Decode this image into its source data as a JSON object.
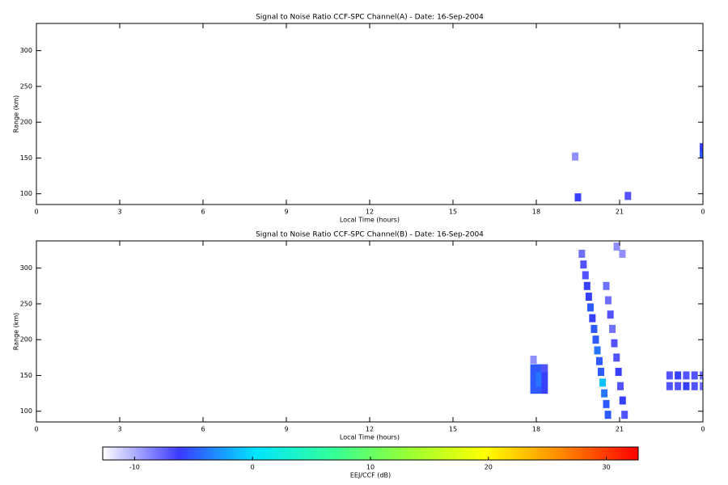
{
  "chart_data": [
    {
      "type": "heatmap",
      "title": "Signal to Noise Ratio CCF-SPC Channel(A) - Date: 16-Sep-2004",
      "xlabel": "Local Time (hours)",
      "ylabel": "Range (km)",
      "xlim": [
        0,
        24
      ],
      "ylim": [
        85,
        338
      ],
      "xticks": [
        0,
        3,
        6,
        9,
        12,
        15,
        18,
        21,
        {
          "value": 24,
          "label": "0"
        }
      ],
      "yticks": [
        100,
        150,
        200,
        250,
        300
      ],
      "x": [
        19.5,
        19.4,
        21.3,
        24.0,
        24.0
      ],
      "y": [
        95,
        152,
        97,
        155,
        165
      ],
      "values": [
        -6,
        -9,
        -7,
        -5,
        -6
      ]
    },
    {
      "type": "heatmap",
      "title": "Signal to Noise Ratio CCF-SPC Channel(B) - Date: 16-Sep-2004",
      "xlabel": "Local Time (hours)",
      "ylabel": "Range (km)",
      "xlim": [
        0,
        24
      ],
      "ylim": [
        85,
        338
      ],
      "xticks": [
        0,
        3,
        6,
        9,
        12,
        15,
        18,
        21,
        {
          "value": 24,
          "label": "0"
        }
      ],
      "yticks": [
        100,
        150,
        200,
        250,
        300
      ],
      "x": [
        17.9,
        18.1,
        18.3,
        17.9,
        18.1,
        18.3,
        17.9,
        18.1,
        18.3,
        17.9,
        18.1,
        18.3,
        20.58,
        20.52,
        20.45,
        20.39,
        20.33,
        20.27,
        20.2,
        20.14,
        20.08,
        20.02,
        19.95,
        19.89,
        19.83,
        19.77,
        19.7,
        19.64,
        21.18,
        21.11,
        21.03,
        20.96,
        20.89,
        20.81,
        20.74,
        20.67,
        20.59,
        20.52,
        22.8,
        23.1,
        23.4,
        23.7,
        24.0,
        22.8,
        23.1,
        23.4,
        23.7,
        24.0,
        20.9,
        21.1,
        17.9
      ],
      "y": [
        130,
        130,
        130,
        140,
        140,
        140,
        150,
        150,
        150,
        160,
        160,
        160,
        95,
        110,
        125,
        140,
        155,
        170,
        185,
        200,
        215,
        230,
        245,
        260,
        275,
        290,
        305,
        320,
        95,
        115,
        135,
        155,
        175,
        195,
        215,
        235,
        255,
        275,
        135,
        135,
        135,
        135,
        135,
        150,
        150,
        150,
        150,
        150,
        330,
        320,
        172
      ],
      "values": [
        -5,
        -5,
        -6,
        -5,
        -4,
        -6,
        -5,
        -4,
        -6,
        -5,
        -5,
        -7,
        -5,
        -5,
        -4,
        -1,
        -5,
        -5,
        -4,
        -5,
        -5,
        -6,
        -5,
        -6,
        -6,
        -7,
        -7,
        -8,
        -7,
        -6,
        -7,
        -6,
        -7,
        -7,
        -8,
        -7,
        -8,
        -8,
        -7,
        -7,
        -6,
        -7,
        -8,
        -7,
        -6,
        -7,
        -7,
        -8,
        -9,
        -9,
        -9
      ]
    },
    {
      "type": "colorbar",
      "xlabel": "EEJ/CCF (dB)",
      "xlim": [
        -12.7,
        32.7
      ],
      "xticks": [
        -10,
        0,
        10,
        20,
        30
      ],
      "colors": [
        "#ffffff",
        "#3a3aff",
        "#00e5ff",
        "#33ff99",
        "#99ff33",
        "#ffff00",
        "#ff8800",
        "#ff0000"
      ]
    }
  ]
}
